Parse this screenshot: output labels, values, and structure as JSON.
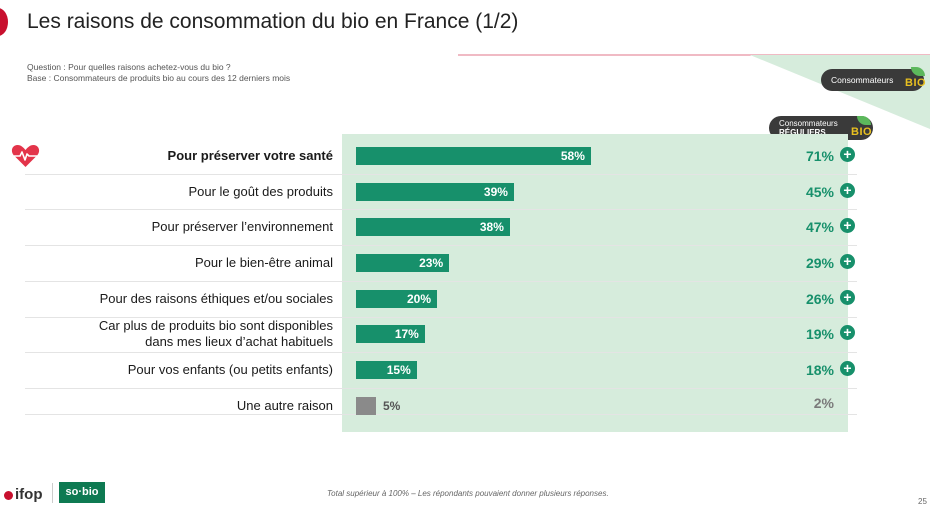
{
  "header": {
    "title": "Les raisons de consommation du bio en France (1/2)",
    "question": "Question : Pour quelles raisons achetez-vous du bio ?",
    "base": "Base : Consommateurs de produits bio au cours des 12 derniers mois"
  },
  "legend": {
    "consumers_label": "Consommateurs",
    "regular_line1": "Consommateurs",
    "regular_line2": "RÉGULIERS",
    "bio_badge": "BIO"
  },
  "chart_data": {
    "type": "bar",
    "orientation": "horizontal",
    "categories": [
      "Pour préserver votre santé",
      "Pour le goût des produits",
      "Pour préserver l’environnement",
      "Pour le bien-être animal",
      "Pour des raisons éthiques et/ou sociales",
      "Car plus de produits bio sont disponibles dans mes lieux d’achat habituels",
      "Pour vos enfants (ou petits enfants)",
      "Une autre raison"
    ],
    "series": [
      {
        "name": "Consommateurs",
        "values": [
          58,
          39,
          38,
          23,
          20,
          17,
          15,
          5
        ]
      },
      {
        "name": "Consommateurs RÉGULIERS",
        "values": [
          71,
          45,
          47,
          29,
          26,
          19,
          18,
          2
        ]
      }
    ],
    "value_labels": [
      "58%",
      "39%",
      "38%",
      "23%",
      "20%",
      "17%",
      "15%",
      "5%"
    ],
    "regular_labels": [
      "71%",
      "45%",
      "47%",
      "29%",
      "26%",
      "19%",
      "18%",
      "2%"
    ],
    "regular_significant": [
      true,
      true,
      true,
      true,
      true,
      true,
      true,
      false
    ],
    "xlim": [
      0,
      100
    ],
    "colors": {
      "bar": "#17906b",
      "other_bar": "#8a8a8a",
      "panel": "#d6ecdc"
    }
  },
  "footer": {
    "note": "Total supérieur à 100% – Les répondants pouvaient donner plusieurs réponses.",
    "page_number": "25",
    "logo_ifop": "ifop",
    "logo_sobio": "so·bio"
  }
}
